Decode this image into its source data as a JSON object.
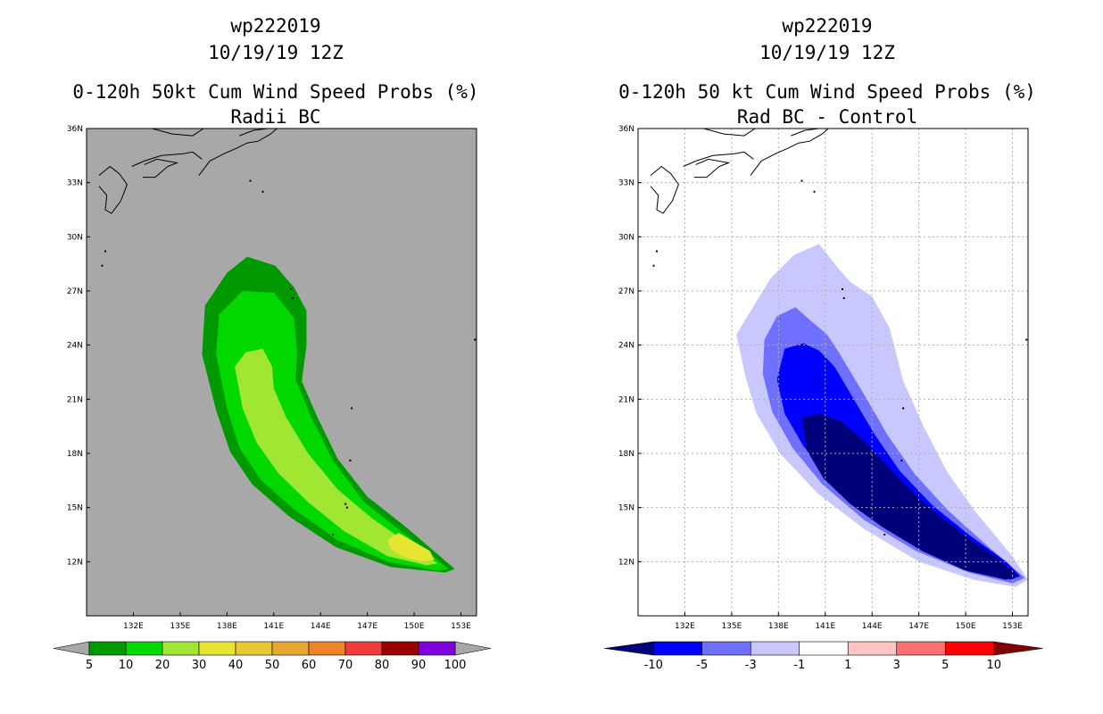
{
  "colors": {
    "background": "#ffffff",
    "map_gray": "#a8a8a8",
    "prob_colors": [
      "#009900",
      "#00d800",
      "#a0e632",
      "#e6e632",
      "#e6c832",
      "#e6a832",
      "#f08228",
      "#f03c3c",
      "#9a0000",
      "#8200dc"
    ],
    "diff_colors": [
      "#00007a",
      "#0000ff",
      "#7070ff",
      "#c8c8ff",
      "#ffffff",
      "#ffc4c4",
      "#ff7070",
      "#ff0000",
      "#820000"
    ],
    "grid": "#b0b0b0",
    "coast": "#000000"
  },
  "chart_data": [
    {
      "type": "map-filled-contour",
      "id": "left",
      "title_lines": [
        "wp222019",
        "10/19/19 12Z",
        "0-120h 50kt Cum Wind Speed Probs (%)",
        "Radii BC"
      ],
      "lon_range": [
        129,
        154
      ],
      "lat_range": [
        9,
        36
      ],
      "x_ticks": [
        "132E",
        "135E",
        "138E",
        "141E",
        "144E",
        "147E",
        "150E",
        "153E"
      ],
      "x_tick_values": [
        132,
        135,
        138,
        141,
        144,
        147,
        150,
        153
      ],
      "y_ticks": [
        "12N",
        "15N",
        "18N",
        "21N",
        "24N",
        "27N",
        "30N",
        "33N",
        "36N"
      ],
      "y_tick_values": [
        12,
        15,
        18,
        21,
        24,
        27,
        30,
        33,
        36
      ],
      "grid": false,
      "colorbar": {
        "labels": [
          "5",
          "10",
          "20",
          "30",
          "40",
          "50",
          "60",
          "70",
          "80",
          "90",
          "100"
        ],
        "colors": [
          "#009900",
          "#00d800",
          "#a0e632",
          "#e6e632",
          "#e6c832",
          "#e6a832",
          "#f08228",
          "#f03c3c",
          "#9a0000",
          "#8200dc"
        ],
        "end_colors": [
          "#a8a8a8",
          "#a8a8a8"
        ]
      },
      "contours": [
        {
          "level": "5",
          "color": "#009900",
          "polygon": [
            [
              136.4,
              23.5
            ],
            [
              136.6,
              26.2
            ],
            [
              138.0,
              28.0
            ],
            [
              139.3,
              28.9
            ],
            [
              141.1,
              28.4
            ],
            [
              142.3,
              27.2
            ],
            [
              143.1,
              25.9
            ],
            [
              143.1,
              24.0
            ],
            [
              142.8,
              22.0
            ],
            [
              143.8,
              20.0
            ],
            [
              145.1,
              17.7
            ],
            [
              147.0,
              15.6
            ],
            [
              149.5,
              13.9
            ],
            [
              152.6,
              11.6
            ],
            [
              152.0,
              11.4
            ],
            [
              148.5,
              11.7
            ],
            [
              145.0,
              12.8
            ],
            [
              142.0,
              14.5
            ],
            [
              139.6,
              16.3
            ],
            [
              138.2,
              18.1
            ],
            [
              137.3,
              20.4
            ]
          ]
        },
        {
          "level": "10",
          "color": "#00d800",
          "polygon": [
            [
              137.3,
              23.5
            ],
            [
              137.5,
              25.7
            ],
            [
              139.0,
              27.0
            ],
            [
              141.0,
              26.9
            ],
            [
              142.3,
              25.5
            ],
            [
              142.5,
              23.6
            ],
            [
              142.4,
              22.1
            ],
            [
              143.4,
              20.0
            ],
            [
              144.8,
              17.6
            ],
            [
              146.8,
              15.3
            ],
            [
              149.3,
              13.6
            ],
            [
              152.2,
              11.6
            ],
            [
              151.5,
              11.5
            ],
            [
              148.3,
              12.0
            ],
            [
              145.1,
              13.2
            ],
            [
              142.3,
              14.9
            ],
            [
              140.2,
              16.5
            ],
            [
              138.8,
              18.3
            ],
            [
              138.0,
              20.5
            ]
          ]
        },
        {
          "level": "20",
          "color": "#a0e632",
          "polygon": [
            [
              138.5,
              22.8
            ],
            [
              139.2,
              23.6
            ],
            [
              140.3,
              23.8
            ],
            [
              140.9,
              22.8
            ],
            [
              141.0,
              21.6
            ],
            [
              141.8,
              20.0
            ],
            [
              143.2,
              18.0
            ],
            [
              145.1,
              16.0
            ],
            [
              147.3,
              14.4
            ],
            [
              149.8,
              12.9
            ],
            [
              151.5,
              11.9
            ],
            [
              150.8,
              11.8
            ],
            [
              148.3,
              12.3
            ],
            [
              145.5,
              13.7
            ],
            [
              143.2,
              15.3
            ],
            [
              141.3,
              16.9
            ],
            [
              139.9,
              18.6
            ],
            [
              139.0,
              20.5
            ]
          ]
        },
        {
          "level": "30",
          "color": "#e6e632",
          "polygon": [
            [
              148.3,
              13.2
            ],
            [
              149.0,
              13.6
            ],
            [
              150.0,
              13.1
            ],
            [
              151.0,
              12.6
            ],
            [
              151.3,
              12.1
            ],
            [
              150.4,
              12.0
            ],
            [
              149.2,
              12.3
            ],
            [
              148.5,
              12.7
            ]
          ]
        }
      ]
    },
    {
      "type": "map-filled-contour",
      "id": "right",
      "title_lines": [
        "wp222019",
        "10/19/19 12Z",
        "0-120h 50 kt Cum Wind Speed Probs (%)",
        "Rad BC - Control"
      ],
      "lon_range": [
        129,
        154
      ],
      "lat_range": [
        9,
        36
      ],
      "x_ticks": [
        "132E",
        "135E",
        "138E",
        "141E",
        "144E",
        "147E",
        "150E",
        "153E"
      ],
      "x_tick_values": [
        132,
        135,
        138,
        141,
        144,
        147,
        150,
        153
      ],
      "y_ticks": [
        "12N",
        "15N",
        "18N",
        "21N",
        "24N",
        "27N",
        "30N",
        "33N",
        "36N"
      ],
      "y_tick_values": [
        12,
        15,
        18,
        21,
        24,
        27,
        30,
        33,
        36
      ],
      "grid": true,
      "colorbar": {
        "labels": [
          "-10",
          "-5",
          "-3",
          "-1",
          "1",
          "3",
          "5",
          "10"
        ],
        "colors": [
          "#0000ff",
          "#7070ff",
          "#c8c8ff",
          "#ffffff",
          "#ffc4c4",
          "#ff7070",
          "#ff0000"
        ],
        "end_colors": [
          "#00007a",
          "#820000"
        ]
      },
      "contours": [
        {
          "level": "-1",
          "color": "#c8c8ff",
          "polygon": [
            [
              135.3,
              24.6
            ],
            [
              136.3,
              26.0
            ],
            [
              137.5,
              27.7
            ],
            [
              139.0,
              29.0
            ],
            [
              140.6,
              29.6
            ],
            [
              141.8,
              28.3
            ],
            [
              142.6,
              27.5
            ],
            [
              144.0,
              26.7
            ],
            [
              145.1,
              25.0
            ],
            [
              145.5,
              23.7
            ],
            [
              146.0,
              22.0
            ],
            [
              147.3,
              19.5
            ],
            [
              148.8,
              17.0
            ],
            [
              150.6,
              14.8
            ],
            [
              153.0,
              12.3
            ],
            [
              154.0,
              11.0
            ],
            [
              153.2,
              10.6
            ],
            [
              150.5,
              11.0
            ],
            [
              147.0,
              12.0
            ],
            [
              143.5,
              13.8
            ],
            [
              140.5,
              15.8
            ],
            [
              138.1,
              18.0
            ],
            [
              136.6,
              20.2
            ],
            [
              135.9,
              22.2
            ]
          ]
        },
        {
          "level": "-3",
          "color": "#7070ff",
          "polygon": [
            [
              137.1,
              24.3
            ],
            [
              137.9,
              25.6
            ],
            [
              139.1,
              26.1
            ],
            [
              140.0,
              25.4
            ],
            [
              141.1,
              24.6
            ],
            [
              141.8,
              23.7
            ],
            [
              143.6,
              21.1
            ],
            [
              145.0,
              19.0
            ],
            [
              146.7,
              16.9
            ],
            [
              148.8,
              14.9
            ],
            [
              151.5,
              12.8
            ],
            [
              153.8,
              11.1
            ],
            [
              153.0,
              10.8
            ],
            [
              150.2,
              11.4
            ],
            [
              146.8,
              12.6
            ],
            [
              143.5,
              14.3
            ],
            [
              140.8,
              16.3
            ],
            [
              138.9,
              18.3
            ],
            [
              137.6,
              20.3
            ],
            [
              137.0,
              22.4
            ]
          ]
        },
        {
          "level": "-5",
          "color": "#0000ff",
          "polygon": [
            [
              137.9,
              22.1
            ],
            [
              138.4,
              23.8
            ],
            [
              139.6,
              24.1
            ],
            [
              140.6,
              23.7
            ],
            [
              141.6,
              22.8
            ],
            [
              142.9,
              20.9
            ],
            [
              144.2,
              19.0
            ],
            [
              145.8,
              17.0
            ],
            [
              147.9,
              15.1
            ],
            [
              150.2,
              13.5
            ],
            [
              152.6,
              12.0
            ],
            [
              153.5,
              11.2
            ],
            [
              152.9,
              11.0
            ],
            [
              150.3,
              11.6
            ],
            [
              147.0,
              13.0
            ],
            [
              144.1,
              14.6
            ],
            [
              141.6,
              16.5
            ],
            [
              139.6,
              18.4
            ],
            [
              138.4,
              20.2
            ]
          ]
        },
        {
          "level": "-10",
          "color": "#00007a",
          "polygon": [
            [
              139.5,
              20.0
            ],
            [
              140.6,
              20.2
            ],
            [
              142.0,
              19.8
            ],
            [
              143.6,
              18.6
            ],
            [
              145.4,
              16.9
            ],
            [
              147.5,
              15.1
            ],
            [
              150.0,
              13.4
            ],
            [
              152.2,
              12.1
            ],
            [
              153.3,
              11.2
            ],
            [
              152.6,
              11.0
            ],
            [
              150.0,
              11.5
            ],
            [
              147.2,
              12.6
            ],
            [
              144.7,
              13.9
            ],
            [
              142.6,
              15.2
            ],
            [
              140.9,
              16.6
            ],
            [
              139.8,
              18.2
            ]
          ]
        }
      ]
    }
  ]
}
